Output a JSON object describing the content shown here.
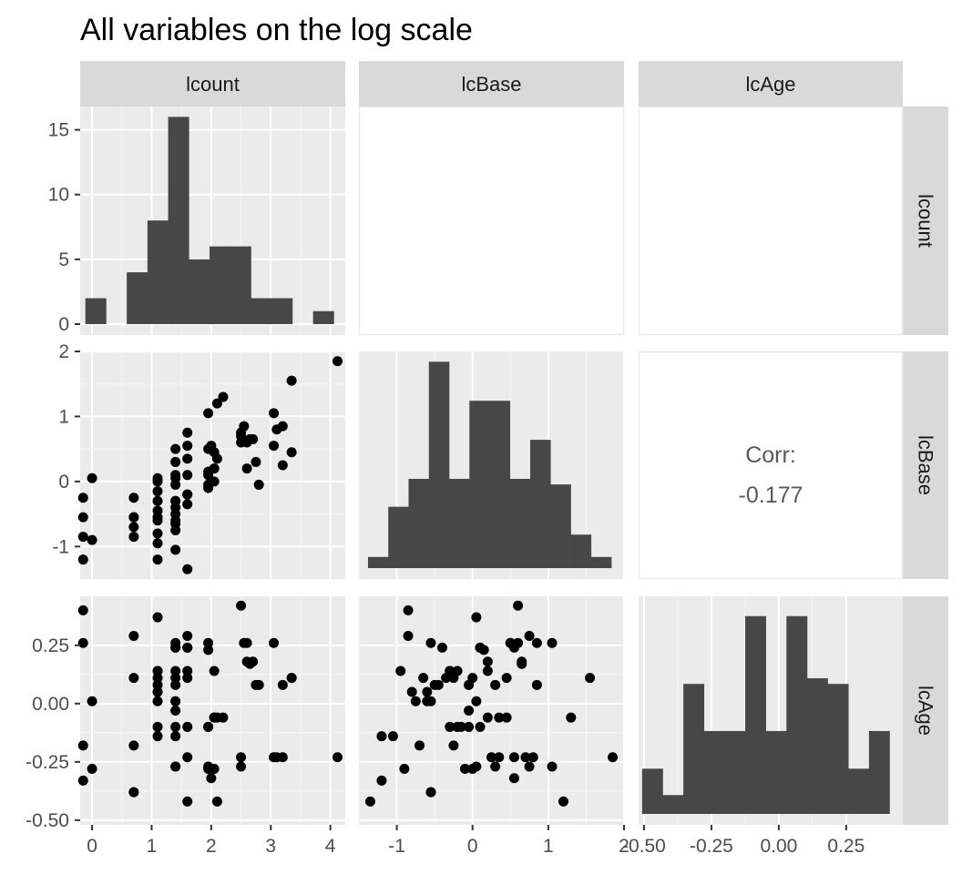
{
  "chart_data": {
    "type": "scatter",
    "title": "All variables on the log scale",
    "variables": [
      "lcount",
      "lcBase",
      "lcAge"
    ],
    "axes": {
      "lcount": {
        "range": [
          -0.2,
          4.25
        ],
        "ticks": [
          0,
          1,
          2,
          3,
          4
        ],
        "tick_labels": [
          "0",
          "1",
          "2",
          "3",
          "4"
        ]
      },
      "lcBase": {
        "range": [
          -1.5,
          2.0
        ],
        "ticks": [
          -1,
          0,
          1,
          2
        ],
        "tick_labels": [
          "-1",
          "0",
          "1",
          "2"
        ]
      },
      "lcAge": {
        "range": [
          -0.52,
          0.46
        ],
        "ticks": [
          -0.5,
          -0.25,
          0,
          0.25
        ],
        "tick_labels": [
          "-0.50",
          "-0.25",
          "0.00",
          "0.25"
        ]
      }
    },
    "diag_y_ticks": {
      "ticks": [
        0,
        5,
        10,
        15
      ],
      "tick_labels": [
        "0",
        "5",
        "10",
        "15"
      ]
    },
    "histograms": {
      "lcount": {
        "count_range": [
          0,
          16
        ],
        "bin_start": -0.113,
        "bin_width": 0.3475,
        "counts": [
          2,
          0,
          4,
          8,
          16,
          5,
          6,
          6,
          2,
          2,
          0,
          1
        ]
      },
      "lcBase": {
        "count_range": [
          0,
          1.85
        ],
        "bin_start": -1.38,
        "bin_width": 0.2677,
        "counts": [
          0.1,
          0.55,
          0.8,
          1.85,
          0.8,
          1.5,
          1.5,
          0.8,
          1.15,
          0.75,
          0.3,
          0.1
        ]
      },
      "lcAge": {
        "count_range": [
          0,
          1.1
        ],
        "bin_start": -0.507,
        "bin_width": 0.0765,
        "counts": [
          0.24,
          0.1,
          0.69,
          0.44,
          0.44,
          1.05,
          0.44,
          1.05,
          0.72,
          0.69,
          0.24,
          0.44
        ]
      }
    },
    "correlations": [
      {
        "row": "lcAge",
        "col": "lcBase",
        "label": "Corr:",
        "value": "-0.177"
      }
    ],
    "points": {
      "lcount": [
        4.12,
        3.35,
        3.05,
        3.1,
        3.2,
        2.75,
        2.65,
        2.55,
        2.5,
        2.2,
        2.1,
        1.95,
        2.0,
        2.05,
        1.6,
        1.6,
        1.4,
        1.4,
        1.6,
        1.95,
        2.05,
        1.95,
        1.1,
        1.4,
        1.6,
        1.1,
        1.4,
        1.1,
        1.4,
        0.7,
        0.7,
        1.1,
        1.4,
        1.6,
        1.1,
        1.4,
        1.4,
        0.7,
        -0.15,
        -0.15,
        -0.15,
        -0.15,
        0.0,
        0.0,
        2.5,
        1.1,
        0.7,
        2.6,
        2.7,
        1.95,
        3.35,
        3.2,
        2.8,
        1.1,
        1.4,
        1.6,
        1.1,
        1.4,
        1.6,
        1.1,
        1.4,
        1.4,
        1.6,
        1.95,
        2.05,
        2.1,
        2.5,
        3.05,
        1.1,
        1.4,
        0.7,
        1.95,
        2.05,
        2.6
      ],
      "lcBase": [
        1.85,
        1.55,
        1.05,
        0.8,
        0.85,
        0.3,
        0.65,
        0.85,
        0.75,
        1.3,
        1.2,
        1.05,
        0.55,
        0.45,
        0.75,
        0.55,
        0.5,
        0.3,
        0.35,
        0.15,
        0.2,
        -0.05,
        0.05,
        0.1,
        0.1,
        -0.15,
        -0.05,
        -0.3,
        -0.3,
        -0.25,
        -0.7,
        -0.45,
        -0.5,
        -0.2,
        -0.55,
        -0.65,
        -0.75,
        -0.85,
        -0.85,
        -1.2,
        -0.55,
        -0.25,
        0.05,
        -0.9,
        0.7,
        -1.2,
        -0.55,
        0.6,
        0.65,
        -0.1,
        0.45,
        0.25,
        -0.05,
        0.0,
        -1.05,
        -1.35,
        -0.8,
        -0.3,
        -0.35,
        -0.95,
        -0.4,
        0.05,
        -0.2,
        0.5,
        0.2,
        0.35,
        0.6,
        0.55,
        -0.6,
        -0.6,
        -0.55,
        0.1,
        0.0,
        0.2
      ],
      "lcAge": [
        -0.23,
        0.11,
        0.26,
        -0.23,
        0.08,
        0.08,
        0.17,
        0.26,
        -0.27,
        -0.06,
        -0.42,
        -0.27,
        -0.32,
        -0.06,
        0.29,
        0.24,
        0.26,
        -0.27,
        -0.23,
        0.23,
        -0.06,
        -0.1,
        0.37,
        0.24,
        0.24,
        -0.1,
        -0.03,
        0.14,
        0.14,
        0.11,
        -0.18,
        0.08,
        0.08,
        0.14,
        0.01,
        0.11,
        0.01,
        0.29,
        0.4,
        -0.33,
        0.26,
        -0.18,
        0.01,
        -0.28,
        -0.23,
        -0.14,
        -0.38,
        0.26,
        0.18,
        -0.28,
        0.11,
        -0.23,
        0.08,
        0.11,
        -0.14,
        -0.42,
        0.05,
        -0.1,
        0.11,
        0.14,
        0.24,
        -0.27,
        -0.1,
        0.26,
        0.14,
        -0.06,
        0.42,
        -0.23,
        0.05,
        0.01,
        -0.38,
        -0.1,
        -0.28,
        0.18
      ]
    }
  }
}
